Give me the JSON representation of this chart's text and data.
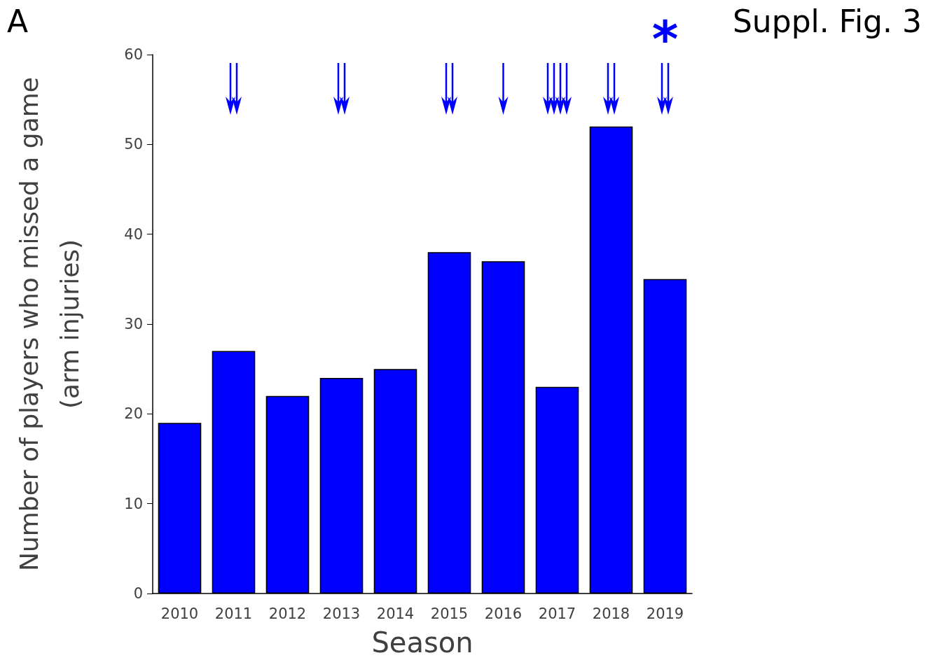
{
  "chart_data": {
    "type": "bar",
    "xlabel": "Season",
    "ylabel": "Number of players who missed a game\n(arm injuries)",
    "categories": [
      "2010",
      "2011",
      "2012",
      "2013",
      "2014",
      "2015",
      "2016",
      "2017",
      "2018",
      "2019"
    ],
    "values": [
      19,
      27,
      22,
      24,
      25,
      38,
      37,
      23,
      52,
      35
    ],
    "color": "#0000ff",
    "ylim": [
      0,
      60
    ],
    "yticks": [
      0,
      10,
      20,
      30,
      40,
      50,
      60
    ],
    "grid": false,
    "annotations": [
      "A",
      "*",
      "Suppl. Fig. 3"
    ]
  }
}
